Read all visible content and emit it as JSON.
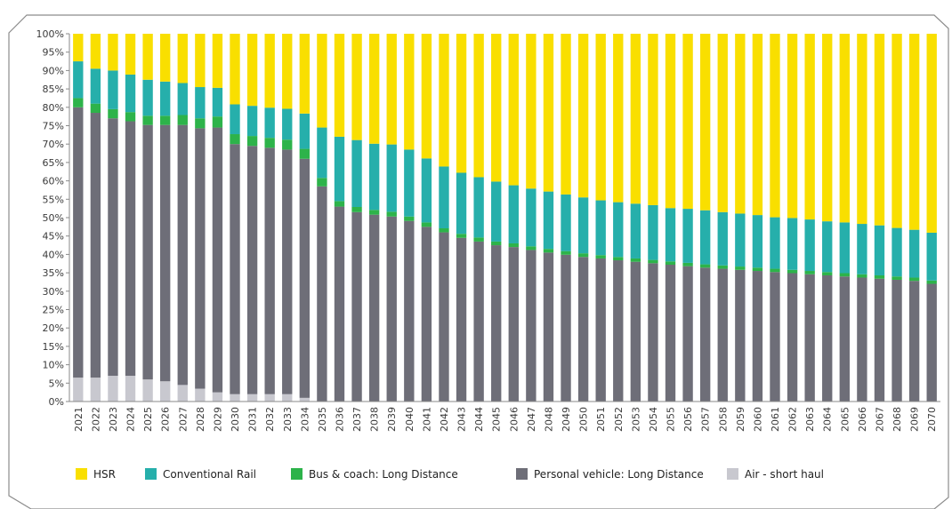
{
  "chart_data": {
    "type": "bar",
    "stacked": true,
    "percent": true,
    "title": "",
    "xlabel": "",
    "ylabel": "",
    "ylim": [
      0,
      100
    ],
    "yticks": [
      "0%",
      "5%",
      "10%",
      "15%",
      "20%",
      "25%",
      "30%",
      "35%",
      "40%",
      "45%",
      "50%",
      "55%",
      "60%",
      "65%",
      "70%",
      "75%",
      "80%",
      "85%",
      "90%",
      "95%",
      "100%"
    ],
    "grid": false,
    "legend_position": "bottom",
    "categories": [
      "2021",
      "2022",
      "2023",
      "2024",
      "2025",
      "2026",
      "2027",
      "2028",
      "2029",
      "2030",
      "2031",
      "2032",
      "2033",
      "2034",
      "2035",
      "2036",
      "2037",
      "2038",
      "2039",
      "2040",
      "2041",
      "2042",
      "2043",
      "2044",
      "2045",
      "2046",
      "2047",
      "2048",
      "2049",
      "2050",
      "2051",
      "2052",
      "2053",
      "2054",
      "2055",
      "2056",
      "2057",
      "2058",
      "2059",
      "2060",
      "2061",
      "2062",
      "2063",
      "2064",
      "2065",
      "2066",
      "2067",
      "2068",
      "2069",
      "2070"
    ],
    "series": [
      {
        "name": "Air - short haul",
        "color": "#c8c8cf",
        "values": [
          6.5,
          6.5,
          7,
          7,
          6,
          5.5,
          4.5,
          3.5,
          2.5,
          2,
          2,
          2,
          2,
          1,
          0,
          0,
          0,
          0,
          0,
          0,
          0,
          0,
          0,
          0,
          0,
          0,
          0,
          0,
          0,
          0,
          0,
          0,
          0,
          0,
          0,
          0,
          0,
          0,
          0,
          0,
          0,
          0,
          0,
          0,
          0,
          0,
          0,
          0,
          0,
          0
        ]
      },
      {
        "name": "Personal vehicle: Long Distance",
        "color": "#6e6e78",
        "values": [
          73.5,
          72,
          70,
          69.2,
          69.2,
          69.7,
          70.7,
          70.8,
          72,
          68,
          67.5,
          67,
          66.5,
          65,
          58.5,
          53,
          51.5,
          50.8,
          50.3,
          49.1,
          47.5,
          46,
          44.5,
          43.5,
          42.5,
          42,
          41.2,
          40.5,
          39.9,
          39.3,
          38.9,
          38.4,
          38,
          37.6,
          37.2,
          36.8,
          36.4,
          36.1,
          35.8,
          35.5,
          35.2,
          34.9,
          34.6,
          34.3,
          34,
          33.7,
          33.4,
          33.1,
          32.8,
          32
        ]
      },
      {
        "name": "Bus & coach: Long Distance",
        "color": "#2db34a",
        "values": [
          2.5,
          2.5,
          2.5,
          2.5,
          2.5,
          2.5,
          2.7,
          2.7,
          3,
          2.7,
          2.7,
          2.7,
          2.7,
          2.7,
          2.3,
          1.5,
          1.4,
          1.3,
          1.3,
          1.2,
          1.2,
          1.1,
          1.1,
          1.1,
          1,
          1,
          1,
          1,
          1,
          1,
          0.9,
          0.9,
          0.9,
          0.9,
          0.9,
          0.9,
          0.9,
          0.9,
          0.9,
          0.9,
          0.9,
          0.9,
          0.9,
          0.9,
          0.9,
          0.9,
          0.9,
          0.9,
          0.9,
          0.9
        ]
      },
      {
        "name": "Conventional Rail",
        "color": "#26afab",
        "values": [
          10,
          9.5,
          10.5,
          10.2,
          9.8,
          9.3,
          8.7,
          8.5,
          7.8,
          8.1,
          8.2,
          8.2,
          8.4,
          9.6,
          13.7,
          17.5,
          18.2,
          18,
          18.3,
          18.2,
          17.4,
          16.8,
          16.6,
          16.4,
          16.3,
          15.8,
          15.7,
          15.6,
          15.4,
          15.2,
          14.9,
          14.9,
          14.9,
          14.9,
          14.5,
          14.7,
          14.7,
          14.5,
          14.4,
          14.3,
          14,
          14.1,
          14,
          13.8,
          13.8,
          13.7,
          13.6,
          13.2,
          13,
          13
        ]
      },
      {
        "name": "HSR",
        "color": "#f9df00",
        "values": [
          7.5,
          9.5,
          10,
          11.1,
          12.5,
          13,
          13.4,
          14.5,
          14.7,
          19.2,
          19.6,
          20.1,
          20.4,
          21.7,
          25.5,
          28,
          28.9,
          29.9,
          30.1,
          31.5,
          33.9,
          36.1,
          37.8,
          39,
          40.2,
          41.2,
          42.1,
          42.9,
          43.7,
          44.5,
          45.3,
          45.8,
          46.2,
          46.6,
          47.4,
          47.6,
          48,
          48.5,
          48.9,
          49.3,
          49.9,
          50.1,
          50.5,
          51,
          51.3,
          51.7,
          52.1,
          52.8,
          53.3,
          54.1
        ]
      }
    ],
    "legend_order": [
      "HSR",
      "Conventional Rail",
      "Bus & coach: Long Distance",
      "Personal vehicle: Long Distance",
      "Air - short haul"
    ]
  }
}
